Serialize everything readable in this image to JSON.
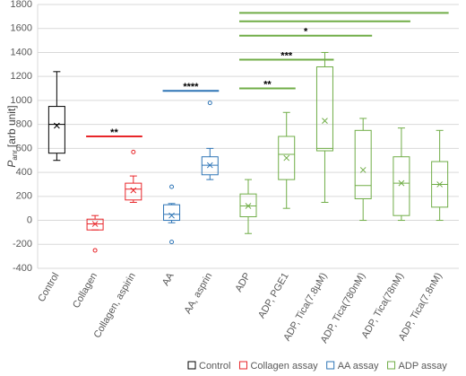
{
  "chart_data": {
    "type": "box",
    "ylabel": {
      "symbol": "P",
      "subscript": "anr",
      "unit": "[arb unit]"
    },
    "categories": [
      "Control",
      "Collagen",
      "Collagen, aspirin",
      "AA",
      "AA, asprin",
      "ADP",
      "ADP, PGE1",
      "ADP, Tica(7.8µM)",
      "ADP, Tica(780nM)",
      "ADP, Tica(78nM)",
      "ADP, Tica(7.8nM)"
    ],
    "ylim": [
      -400,
      1800
    ],
    "yticks": [
      -400,
      -200,
      0,
      200,
      400,
      600,
      800,
      1000,
      1200,
      1400,
      1600,
      1800
    ],
    "grid": true,
    "legend": "bottom",
    "series": [
      {
        "name": "Control",
        "color": "#000000",
        "values": [
          {
            "min": 500,
            "q1": 560,
            "median": 800,
            "q3": 950,
            "max": 1240,
            "mean": 790,
            "outliers": []
          },
          null,
          null,
          null,
          null,
          null,
          null,
          null,
          null,
          null,
          null
        ]
      },
      {
        "name": "Collagen assay",
        "color": "#e8262a",
        "values": [
          null,
          {
            "min": -80,
            "q1": -80,
            "median": -30,
            "q3": 10,
            "max": 40,
            "mean": -30,
            "outliers": [
              -250
            ]
          },
          {
            "min": 150,
            "q1": 170,
            "median": 260,
            "q3": 310,
            "max": 370,
            "mean": 250,
            "outliers": [
              570
            ]
          },
          null,
          null,
          null,
          null,
          null,
          null,
          null,
          null
        ]
      },
      {
        "name": "AA assay",
        "color": "#2e75b6",
        "values": [
          null,
          null,
          null,
          {
            "min": -20,
            "q1": 0,
            "median": 50,
            "q3": 130,
            "max": 140,
            "mean": 40,
            "outliers": [
              280,
              -180
            ]
          },
          {
            "min": 340,
            "q1": 380,
            "median": 460,
            "q3": 530,
            "max": 600,
            "mean": 460,
            "outliers": [
              980
            ]
          },
          null,
          null,
          null,
          null,
          null,
          null
        ]
      },
      {
        "name": "ADP assay",
        "color": "#70ad47",
        "values": [
          null,
          null,
          null,
          null,
          null,
          {
            "min": -110,
            "q1": 30,
            "median": 120,
            "q3": 220,
            "max": 340,
            "mean": 120,
            "outliers": []
          },
          {
            "min": 100,
            "q1": 340,
            "median": 550,
            "q3": 700,
            "max": 900,
            "mean": 520,
            "outliers": []
          },
          {
            "min": 150,
            "q1": 580,
            "median": 600,
            "q3": 1280,
            "max": 1400,
            "mean": 830,
            "outliers": []
          },
          {
            "min": 0,
            "q1": 180,
            "median": 290,
            "q3": 750,
            "max": 850,
            "mean": 420,
            "outliers": []
          },
          {
            "min": 0,
            "q1": 40,
            "median": 310,
            "q3": 530,
            "max": 770,
            "mean": 310,
            "outliers": []
          },
          {
            "min": 0,
            "q1": 110,
            "median": 300,
            "q3": 490,
            "max": 750,
            "mean": 300,
            "outliers": []
          }
        ]
      }
    ],
    "annotations": [
      {
        "label": "**",
        "x": [
          1,
          2
        ],
        "y": 700,
        "color": "#e8262a"
      },
      {
        "label": "****",
        "x": [
          3,
          4
        ],
        "y": 1080,
        "color": "#2e75b6"
      },
      {
        "label": "**",
        "x": [
          5,
          6
        ],
        "y": 1100,
        "color": "#70ad47"
      },
      {
        "label": "***",
        "x": [
          5,
          7
        ],
        "y": 1340,
        "color": "#70ad47"
      },
      {
        "label": "*",
        "x": [
          5,
          8
        ],
        "y": 1540,
        "color": "#70ad47"
      },
      {
        "x": [
          5,
          9
        ],
        "y": 1660,
        "color": "#70ad47"
      },
      {
        "x": [
          5,
          10
        ],
        "y": 1730,
        "color": "#70ad47"
      }
    ]
  }
}
